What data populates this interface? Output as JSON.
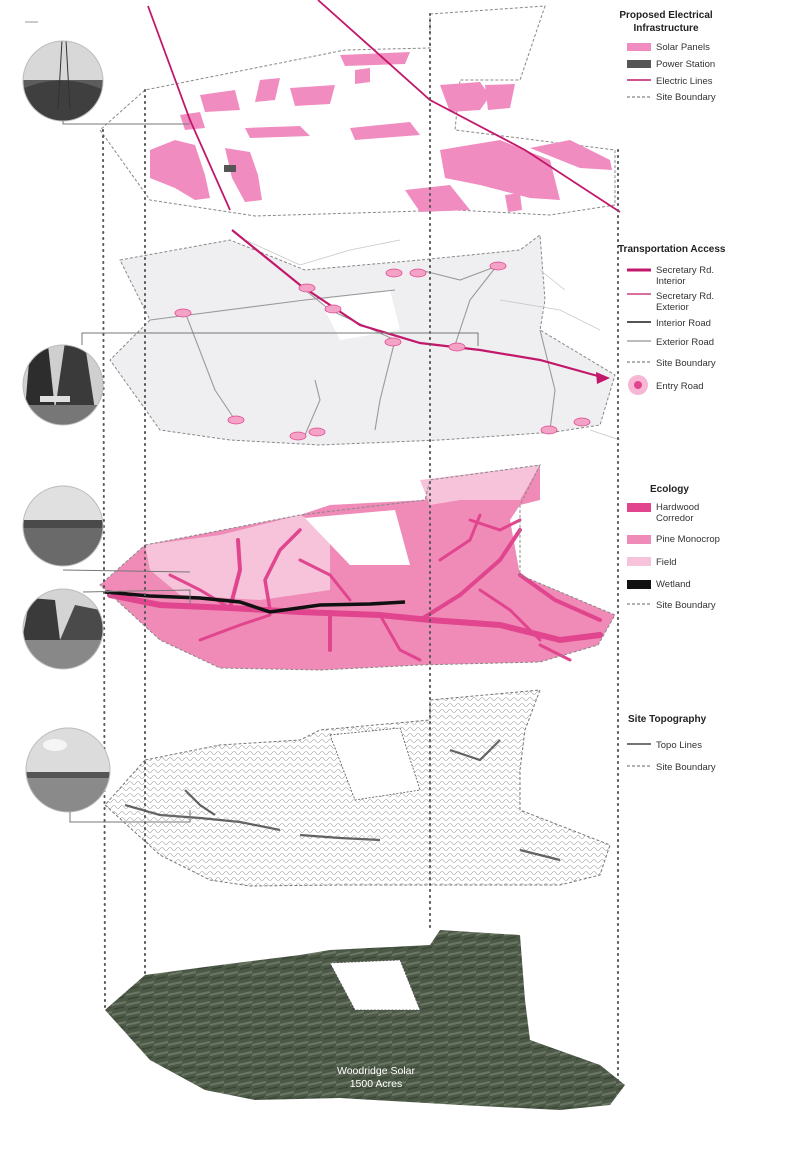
{
  "legends": {
    "electrical": {
      "title_line1": "Proposed Electrical",
      "title_line2": "Infrastructure",
      "items": [
        "Solar Panels",
        "Power Station",
        "Electric Lines",
        "Site Boundary"
      ]
    },
    "transport": {
      "title": "Transportation Access",
      "items": [
        "Secretary Rd.",
        "Interior",
        "Secretary Rd.",
        "Exterior",
        "Interior Road",
        "Exterior Road",
        "Site Boundary",
        "Entry Road"
      ]
    },
    "ecology": {
      "title": "Ecology",
      "items": [
        "Hardwood",
        "Corredor",
        "Pine Monocrop",
        "Field",
        "Wetland",
        "Site Boundary"
      ]
    },
    "topography": {
      "title": "Site Topography",
      "items": [
        "Topo Lines",
        "Site Boundary"
      ]
    }
  },
  "caption": {
    "line1": "Woodridge Solar",
    "line2": "1500 Acres"
  },
  "colors": {
    "solar": "#f08cc0",
    "power_station": "#555555",
    "electric": "#c2186b",
    "hardwood": "#e0458e",
    "pine": "#f08bb7",
    "field": "#f6c3da",
    "wetland": "#111111",
    "road_light": "#efeff1",
    "satellite": "#4e5a48"
  }
}
